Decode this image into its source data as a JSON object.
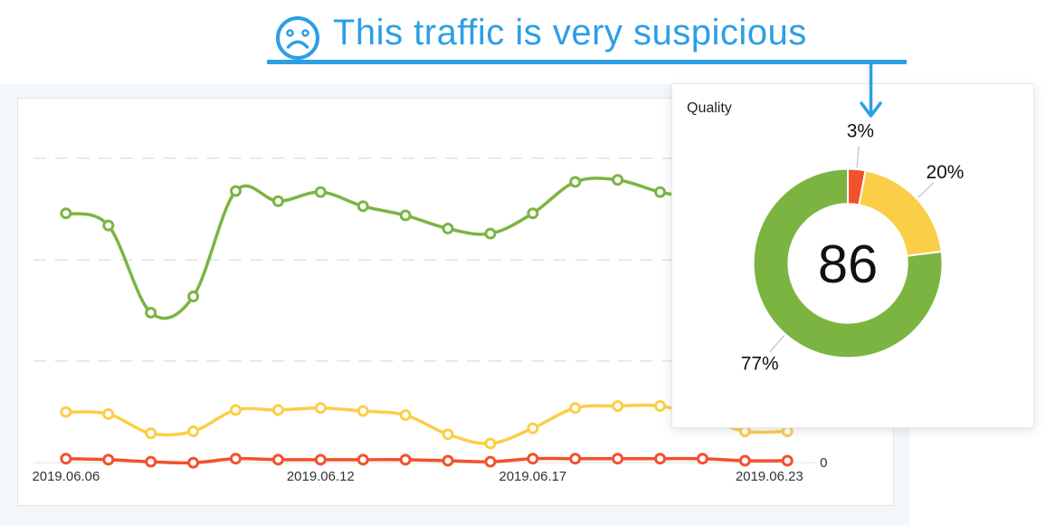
{
  "annotation": {
    "icon": "sad-face",
    "title": "This traffic is very suspicious",
    "accent_color": "#2c9fe5"
  },
  "quality_card": {
    "title": "Quality"
  },
  "colors": {
    "green": "#7cb442",
    "yellow": "#fbce48",
    "orange_red": "#f2512b",
    "panel_background": "#f3f7f9",
    "gridline": "#e2e2e2"
  },
  "chart_data": [
    {
      "type": "line",
      "title": "",
      "n_points": 18,
      "x_tick_labels": [
        "2019.06.06",
        "2019.06.12",
        "2019.06.17",
        "2019.06.23"
      ],
      "x_tick_indices": [
        0,
        6,
        11,
        17
      ],
      "y_axis": {
        "zero_label": "0",
        "gridlines": "3 dashed unlabeled gridlines above baseline",
        "unit": "relative: 1 = one gridline interval"
      },
      "ylim": [
        0,
        3.6
      ],
      "legend": "none",
      "note": "Only '0' is labeled on the y-axis; values estimated in gridline units. Green indices 15-17 and yellow index 15 are occluded by the overlapping Quality card in the screenshot (values estimated).",
      "series": [
        {
          "name": "green",
          "color": "#7cb442",
          "values": [
            2.46,
            2.34,
            1.48,
            1.64,
            2.68,
            2.58,
            2.67,
            2.53,
            2.44,
            2.31,
            2.26,
            2.46,
            2.77,
            2.79,
            2.67,
            2.6,
            2.55,
            2.5
          ],
          "occluded_from_index": 15
        },
        {
          "name": "yellow",
          "color": "#fbce48",
          "values": [
            0.5,
            0.48,
            0.29,
            0.31,
            0.52,
            0.52,
            0.54,
            0.51,
            0.47,
            0.28,
            0.19,
            0.34,
            0.54,
            0.56,
            0.56,
            0.45,
            0.31,
            0.31
          ],
          "occluded_indices": [
            15
          ]
        },
        {
          "name": "orange",
          "color": "#f2512b",
          "values": [
            0.04,
            0.03,
            0.01,
            0.0,
            0.04,
            0.03,
            0.03,
            0.03,
            0.03,
            0.02,
            0.01,
            0.04,
            0.04,
            0.04,
            0.04,
            0.04,
            0.02,
            0.02
          ]
        }
      ]
    },
    {
      "type": "donut",
      "title": "Quality",
      "center_label": "86",
      "start": "12 o'clock, clockwise",
      "slices": [
        {
          "label": "3%",
          "value": 3,
          "color": "#f2512b"
        },
        {
          "label": "20%",
          "value": 20,
          "color": "#fbce48"
        },
        {
          "label": "77%",
          "value": 77,
          "color": "#7cb442"
        }
      ]
    }
  ]
}
